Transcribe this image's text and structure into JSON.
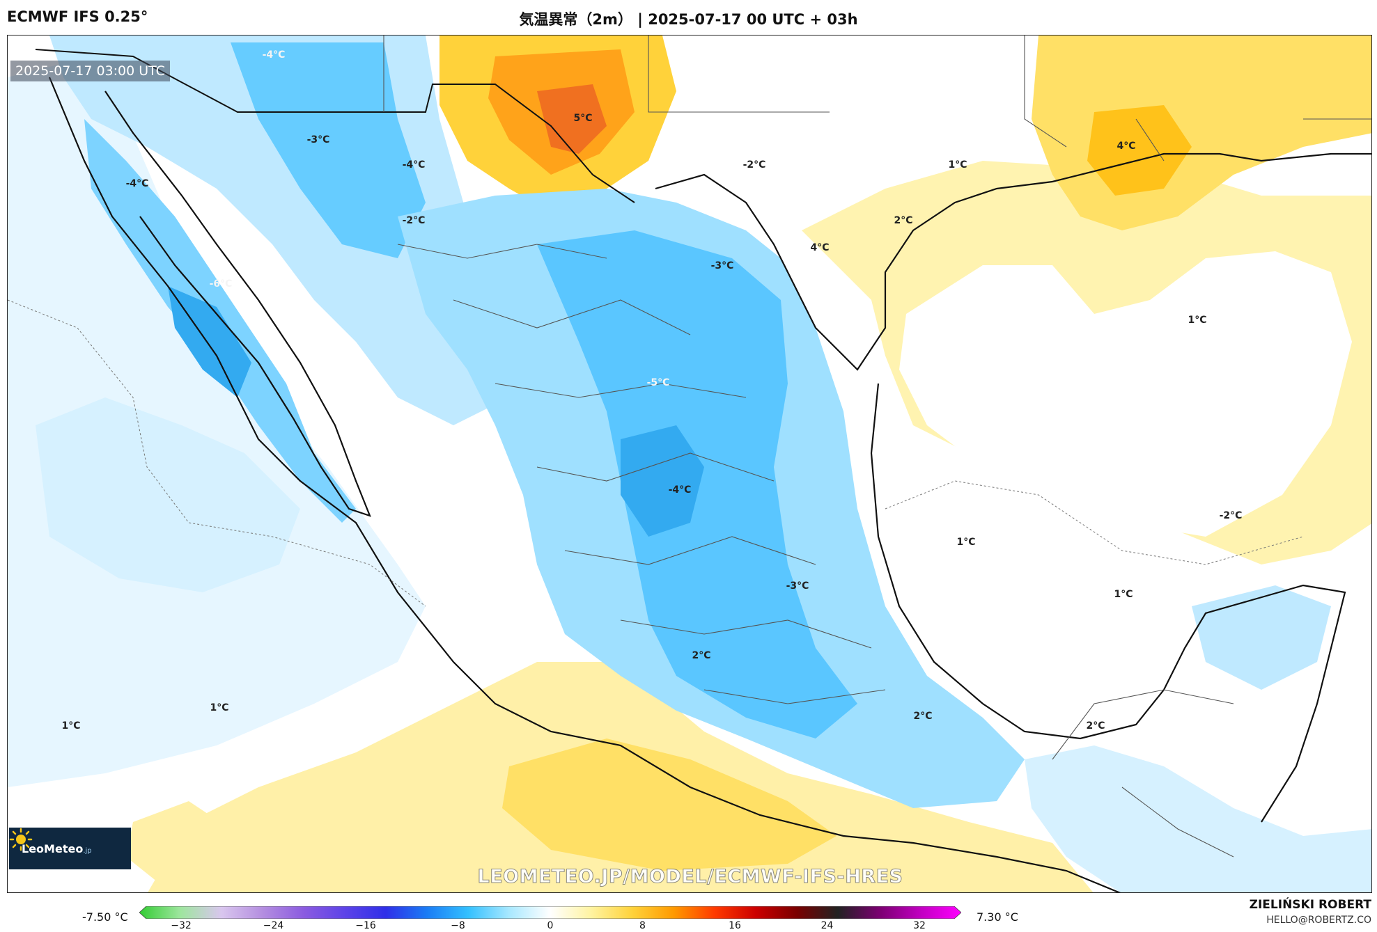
{
  "header": {
    "model": "ECMWF IFS 0.25°",
    "title": "気温異常（2m） | 2025-07-17 00 UTC + 03h"
  },
  "map": {
    "valid_time": "2025-07-17 03:00 UTC",
    "watermark": "LEOMETEO.JP/MODEL/ECMWF-IFS-HRES",
    "logo_text": "LeoMeteo",
    "logo_sub": ".jp",
    "contour_labels": [
      "-4°C",
      "-3°C",
      "-4°C",
      "-4°C",
      "-2°C",
      "-6°C",
      "5°C",
      "-2°C",
      "1°C",
      "4°C",
      "2°C",
      "4°C",
      "-3°C",
      "1°C",
      "-5°C",
      "-4°C",
      "1°C",
      "-2°C",
      "-3°C",
      "1°C",
      "2°C",
      "2°C",
      "2°C",
      "1°C",
      "1°C"
    ]
  },
  "colorbar": {
    "min_label": "-7.50 °C",
    "max_label": "7.30 °C",
    "ticks": [
      "−32",
      "−24",
      "−16",
      "−8",
      "0",
      "8",
      "16",
      "24",
      "32"
    ],
    "stops": [
      "#33cc33",
      "#9ee69e",
      "#d9c6ee",
      "#b48ee0",
      "#8b5be0",
      "#5d43e8",
      "#2f2fe8",
      "#1a7cf5",
      "#33c0ff",
      "#a8e8ff",
      "#ffffff",
      "#fff3a0",
      "#ffd23a",
      "#ff9a00",
      "#ff3a00",
      "#cc0000",
      "#7a0000",
      "#222222",
      "#7a0070",
      "#c000c0",
      "#ff00ff"
    ]
  },
  "credit": {
    "name": "ZIELIŃSKI ROBERT",
    "email": "HELLO@ROBERTZ.CO"
  }
}
